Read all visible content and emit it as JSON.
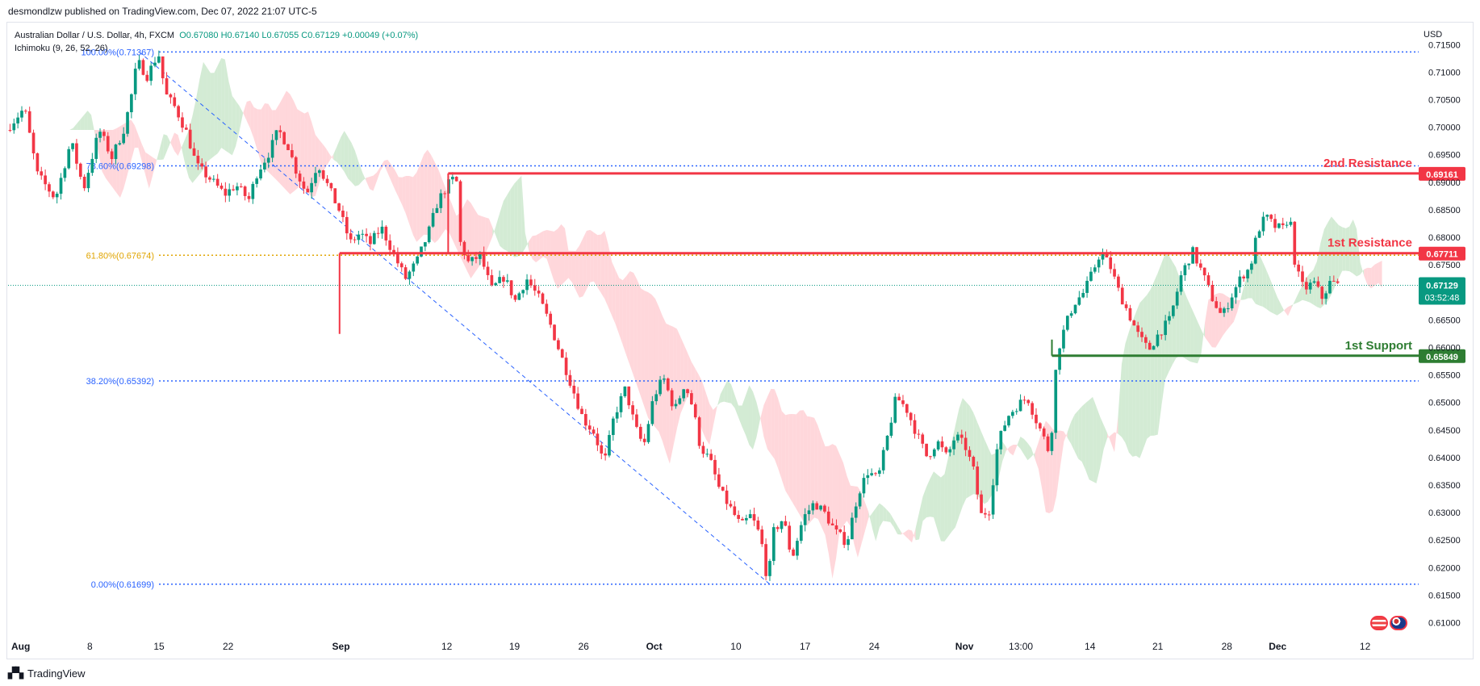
{
  "header": {
    "publisher": "desmondlzw published on TradingView.com, Dec 07, 2022 21:07 UTC-5"
  },
  "legend": {
    "symbol": "Australian Dollar / U.S. Dollar, 4h, FXCM",
    "ohlc": "O0.67080  H0.67140  L0.67055  C0.67129  +0.00049 (+0.07%)",
    "indicator": "Ichimoku (9, 26, 52, 26)"
  },
  "footer": {
    "brand": "TradingView"
  },
  "colors": {
    "up": "#089981",
    "down": "#f23645",
    "fib": "#2962ff",
    "fib618": "#e0a400",
    "cloud_green": "#c8e6c9",
    "cloud_red": "#ffcdd2",
    "resistance": "#f23645",
    "support": "#2e7d32"
  },
  "chart_data": {
    "type": "candlestick",
    "currency": "USD",
    "ylim": [
      0.607,
      0.719
    ],
    "y_ticks": [
      "0.71500",
      "0.71000",
      "0.70500",
      "0.70000",
      "0.69500",
      "0.69000",
      "0.68500",
      "0.68000",
      "0.67500",
      "0.67000",
      "0.66500",
      "0.66000",
      "0.65500",
      "0.65000",
      "0.64500",
      "0.64000",
      "0.63500",
      "0.63000",
      "0.62500",
      "0.62000",
      "0.61500",
      "0.61000"
    ],
    "x_ticks": [
      {
        "label": "Aug",
        "pos": 0.0
      },
      {
        "label": "8",
        "pos": 0.058
      },
      {
        "label": "15",
        "pos": 0.107
      },
      {
        "label": "22",
        "pos": 0.156
      },
      {
        "label": "Sep",
        "pos": 0.236
      },
      {
        "label": "12",
        "pos": 0.311
      },
      {
        "label": "19",
        "pos": 0.359
      },
      {
        "label": "26",
        "pos": 0.408
      },
      {
        "label": "Oct",
        "pos": 0.458
      },
      {
        "label": "10",
        "pos": 0.516
      },
      {
        "label": "17",
        "pos": 0.565
      },
      {
        "label": "24",
        "pos": 0.614
      },
      {
        "label": "Nov",
        "pos": 0.678
      },
      {
        "label": "13:00",
        "pos": 0.718
      },
      {
        "label": "14",
        "pos": 0.767
      },
      {
        "label": "21",
        "pos": 0.815
      },
      {
        "label": "28",
        "pos": 0.864
      },
      {
        "label": "Dec",
        "pos": 0.9
      },
      {
        "label": "12",
        "pos": 0.962
      }
    ],
    "price_path": [
      [
        0.0,
        0.6995
      ],
      [
        0.013,
        0.7035
      ],
      [
        0.022,
        0.6915
      ],
      [
        0.035,
        0.687
      ],
      [
        0.046,
        0.6975
      ],
      [
        0.055,
        0.6888
      ],
      [
        0.066,
        0.6995
      ],
      [
        0.075,
        0.6945
      ],
      [
        0.084,
        0.7
      ],
      [
        0.089,
        0.706
      ],
      [
        0.093,
        0.712
      ],
      [
        0.1,
        0.7093
      ],
      [
        0.108,
        0.7135
      ],
      [
        0.113,
        0.706
      ],
      [
        0.12,
        0.7035
      ],
      [
        0.128,
        0.699
      ],
      [
        0.135,
        0.693
      ],
      [
        0.145,
        0.6905
      ],
      [
        0.155,
        0.6878
      ],
      [
        0.163,
        0.6895
      ],
      [
        0.172,
        0.6868
      ],
      [
        0.178,
        0.6918
      ],
      [
        0.186,
        0.6952
      ],
      [
        0.193,
        0.6995
      ],
      [
        0.2,
        0.6965
      ],
      [
        0.205,
        0.6925
      ],
      [
        0.213,
        0.6878
      ],
      [
        0.221,
        0.6935
      ],
      [
        0.229,
        0.6888
      ],
      [
        0.236,
        0.685
      ],
      [
        0.244,
        0.679
      ],
      [
        0.251,
        0.6808
      ],
      [
        0.258,
        0.6788
      ],
      [
        0.266,
        0.6818
      ],
      [
        0.275,
        0.6768
      ],
      [
        0.283,
        0.6725
      ],
      [
        0.291,
        0.6755
      ],
      [
        0.299,
        0.6805
      ],
      [
        0.306,
        0.6865
      ],
      [
        0.313,
        0.6895
      ],
      [
        0.319,
        0.6912
      ],
      [
        0.322,
        0.679
      ],
      [
        0.328,
        0.6752
      ],
      [
        0.336,
        0.6768
      ],
      [
        0.344,
        0.6705
      ],
      [
        0.353,
        0.6728
      ],
      [
        0.361,
        0.6685
      ],
      [
        0.369,
        0.6725
      ],
      [
        0.378,
        0.6688
      ],
      [
        0.386,
        0.664
      ],
      [
        0.393,
        0.6588
      ],
      [
        0.401,
        0.653
      ],
      [
        0.409,
        0.647
      ],
      [
        0.417,
        0.6445
      ],
      [
        0.424,
        0.6388
      ],
      [
        0.431,
        0.6475
      ],
      [
        0.439,
        0.6525
      ],
      [
        0.446,
        0.6455
      ],
      [
        0.452,
        0.642
      ],
      [
        0.459,
        0.651
      ],
      [
        0.466,
        0.6545
      ],
      [
        0.474,
        0.6485
      ],
      [
        0.481,
        0.6535
      ],
      [
        0.487,
        0.649
      ],
      [
        0.492,
        0.642
      ],
      [
        0.499,
        0.6395
      ],
      [
        0.506,
        0.634
      ],
      [
        0.513,
        0.631
      ],
      [
        0.521,
        0.6275
      ],
      [
        0.528,
        0.6295
      ],
      [
        0.535,
        0.6255
      ],
      [
        0.54,
        0.617
      ],
      [
        0.544,
        0.6265
      ],
      [
        0.551,
        0.629
      ],
      [
        0.557,
        0.6215
      ],
      [
        0.565,
        0.629
      ],
      [
        0.573,
        0.6318
      ],
      [
        0.58,
        0.63
      ],
      [
        0.588,
        0.6265
      ],
      [
        0.596,
        0.6245
      ],
      [
        0.604,
        0.6335
      ],
      [
        0.611,
        0.6375
      ],
      [
        0.618,
        0.636
      ],
      [
        0.625,
        0.644
      ],
      [
        0.631,
        0.651
      ],
      [
        0.638,
        0.649
      ],
      [
        0.646,
        0.644
      ],
      [
        0.653,
        0.64
      ],
      [
        0.66,
        0.643
      ],
      [
        0.667,
        0.64
      ],
      [
        0.673,
        0.644
      ],
      [
        0.68,
        0.642
      ],
      [
        0.686,
        0.6375
      ],
      [
        0.691,
        0.6295
      ],
      [
        0.697,
        0.6305
      ],
      [
        0.703,
        0.6425
      ],
      [
        0.71,
        0.6475
      ],
      [
        0.717,
        0.6495
      ],
      [
        0.724,
        0.651
      ],
      [
        0.729,
        0.6475
      ],
      [
        0.735,
        0.644
      ],
      [
        0.74,
        0.6405
      ],
      [
        0.745,
        0.659
      ],
      [
        0.751,
        0.664
      ],
      [
        0.757,
        0.668
      ],
      [
        0.764,
        0.67
      ],
      [
        0.77,
        0.6735
      ],
      [
        0.776,
        0.6775
      ],
      [
        0.783,
        0.6745
      ],
      [
        0.789,
        0.67
      ],
      [
        0.796,
        0.666
      ],
      [
        0.803,
        0.662
      ],
      [
        0.81,
        0.6595
      ],
      [
        0.817,
        0.6625
      ],
      [
        0.825,
        0.665
      ],
      [
        0.833,
        0.673
      ],
      [
        0.841,
        0.6775
      ],
      [
        0.848,
        0.6735
      ],
      [
        0.855,
        0.669
      ],
      [
        0.862,
        0.6655
      ],
      [
        0.869,
        0.6695
      ],
      [
        0.876,
        0.673
      ],
      [
        0.882,
        0.6745
      ],
      [
        0.887,
        0.681
      ],
      [
        0.893,
        0.6838
      ],
      [
        0.899,
        0.682
      ],
      [
        0.905,
        0.6815
      ],
      [
        0.91,
        0.684
      ],
      [
        0.914,
        0.6745
      ],
      [
        0.92,
        0.6705
      ],
      [
        0.927,
        0.6718
      ],
      [
        0.933,
        0.669
      ],
      [
        0.939,
        0.672
      ],
      [
        0.944,
        0.6713
      ]
    ],
    "fib_levels": [
      {
        "label": "100.00%(0.71367)",
        "value": 0.71367
      },
      {
        "label": "78.60%(0.69298)",
        "value": 0.69298
      },
      {
        "label": "61.80%(0.67674)",
        "value": 0.67674
      },
      {
        "label": "38.20%(0.65392)",
        "value": 0.65392
      },
      {
        "label": "0.00%(0.61699)",
        "value": 0.61699
      }
    ],
    "levels": [
      {
        "name": "2nd Resistance",
        "value": 0.69161,
        "price_label": "0.69161",
        "color": "#f23645"
      },
      {
        "name": "1st Resistance",
        "value": 0.67711,
        "price_label": "0.67711",
        "color": "#f23645"
      },
      {
        "name": "1st Support",
        "value": 0.65849,
        "price_label": "0.65849",
        "color": "#2e7d32"
      }
    ],
    "current": {
      "value": 0.67129,
      "price_label": "0.67129",
      "countdown": "03:52:48"
    }
  }
}
